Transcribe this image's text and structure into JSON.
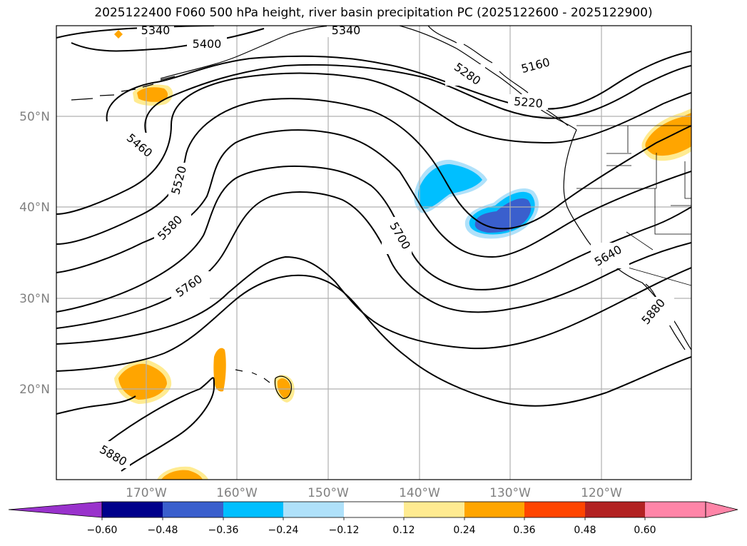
{
  "map": {
    "title": "2025122400 F060 500 hPa height, river basin precipitation PC (2025122600 - 2025122900)",
    "lat_labels": [
      "50°N",
      "40°N",
      "30°N",
      "20°N"
    ],
    "lon_labels": [
      "170°W",
      "160°W",
      "150°W",
      "140°W",
      "130°W",
      "120°W"
    ],
    "contour_labels": [
      "5340",
      "5400",
      "5340",
      "5160",
      "5280",
      "5220",
      "5460",
      "5520",
      "5580",
      "5700",
      "5640",
      "5760",
      "5880",
      "5880"
    ],
    "colors": {
      "land_outline": "#000000",
      "grid": "#b0b0b0",
      "contour": "#000000",
      "pos_light": "#ffeb91",
      "pos_mid": "#ffa500",
      "neg_light": "#afe1fa",
      "neg_mid": "#00bfff",
      "neg_dark": "#3a5fcd"
    }
  },
  "colorbar": {
    "tick_labels": [
      "−0.60",
      "−0.48",
      "−0.36",
      "−0.24",
      "−0.12",
      "0.12",
      "0.24",
      "0.36",
      "0.48",
      "0.60"
    ],
    "colors": [
      "#9932cc",
      "#00008b",
      "#3a5fcd",
      "#00bfff",
      "#afe1fa",
      "#ffffff",
      "#ffeb91",
      "#ffa500",
      "#ff4500",
      "#b22222",
      "#ff85a8",
      "#ff85a8"
    ]
  }
}
